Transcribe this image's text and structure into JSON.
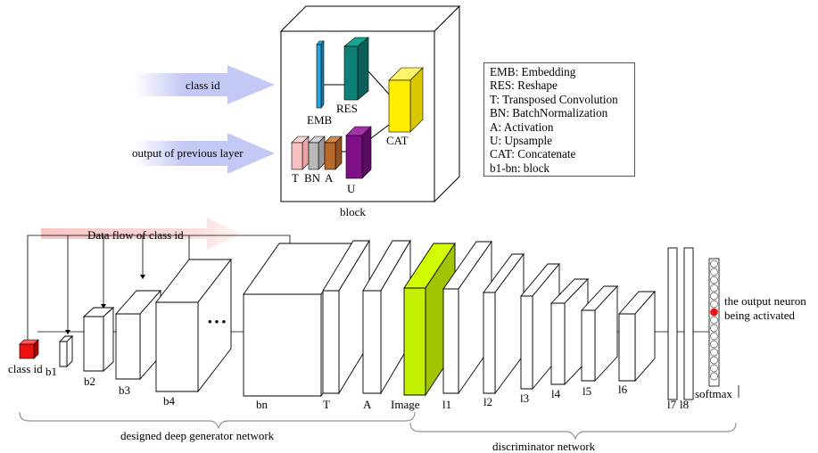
{
  "block_detail": {
    "title": "block",
    "inputs": [
      "class id",
      "output of previous layer"
    ],
    "labels": {
      "emb": "EMB",
      "res": "RES",
      "cat": "CAT",
      "t": "T",
      "bn": "BN",
      "a": "A",
      "u": "U"
    }
  },
  "legend": [
    "EMB: Embedding",
    "RES: Reshape",
    "T: Transposed Convolution",
    "BN: BatchNormalization",
    "A: Activation",
    "U: Upsample",
    "CAT: Concatenate",
    "b1-bn: block"
  ],
  "data_flow_label": "Data flow of class id",
  "ellipsis": "• • •",
  "generator": {
    "class_id_label": "class id",
    "block_labels": [
      "b1",
      "b2",
      "b3",
      "b4",
      "bn",
      "T",
      "A"
    ],
    "image_label": "Image",
    "caption": "designed deep generator network"
  },
  "discriminator": {
    "layer_labels": [
      "l1",
      "l2",
      "l3",
      "l4",
      "l5",
      "l6",
      "l7",
      "l8"
    ],
    "softmax_label": "softmax",
    "output_label": "the output neuron being activated",
    "output_label_lines": [
      "the output neuron",
      "being activated"
    ],
    "caption": "discriminator network"
  },
  "colors": {
    "emb": "#29a8df",
    "res": "#0f8077",
    "cat": "#ffee00",
    "t": "#f8c0c0",
    "bn": "#b8b8b8",
    "a": "#b86a2a",
    "u": "#7f0f86",
    "class_cube": "#ee1111",
    "image": "#c2f000",
    "active_neuron": "#ee1111",
    "input_arrow": "#c4c8f4",
    "flow_arrow": "#f8c6c6"
  }
}
